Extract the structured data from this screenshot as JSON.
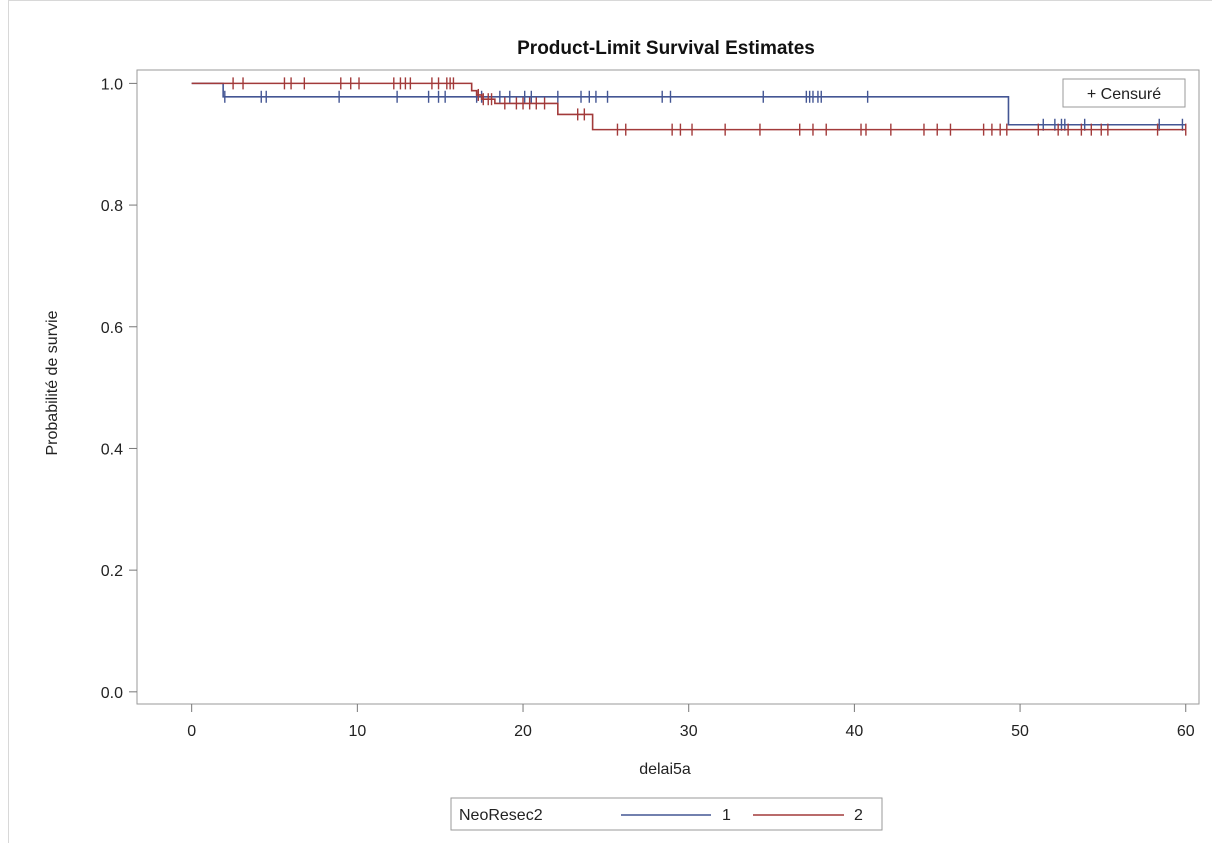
{
  "chart_data": {
    "type": "line",
    "title": "Product-Limit Survival Estimates",
    "xlabel": "delai5a",
    "ylabel": "Probabilité de survie",
    "xlim": [
      -3.3,
      60.8
    ],
    "ylim": [
      -0.02,
      1.022
    ],
    "xticks": [
      0,
      10,
      20,
      30,
      40,
      50,
      60
    ],
    "yticks": [
      0.0,
      0.2,
      0.4,
      0.6,
      0.8,
      1.0
    ],
    "ytick_labels": [
      "0.0",
      "0.2",
      "0.4",
      "0.6",
      "0.8",
      "1.0"
    ],
    "grid": false,
    "inset_legend": {
      "label": "+ Censuré",
      "placement": "top-right"
    },
    "legend": {
      "title": "NeoResec2",
      "placement": "bottom-center"
    },
    "series": [
      {
        "name": "1",
        "color": "#445694",
        "steps": [
          [
            0,
            1.0
          ],
          [
            1.9,
            0.978
          ],
          [
            49.3,
            0.932
          ],
          [
            60.0,
            0.932
          ]
        ],
        "censored": [
          2.0,
          4.2,
          4.5,
          8.9,
          12.4,
          14.3,
          14.9,
          15.3,
          17.2,
          17.5,
          18.6,
          19.2,
          20.1,
          20.5,
          22.1,
          23.5,
          24.0,
          24.4,
          25.1,
          28.4,
          28.9,
          34.5,
          37.1,
          37.3,
          37.5,
          37.8,
          38.0,
          40.8,
          51.4,
          52.1,
          52.5,
          52.7,
          53.9,
          58.4,
          59.8
        ]
      },
      {
        "name": "2",
        "color": "#a23a3a",
        "steps": [
          [
            0,
            1.0
          ],
          [
            16.9,
            0.988
          ],
          [
            17.2,
            0.981
          ],
          [
            17.5,
            0.974
          ],
          [
            18.3,
            0.967
          ],
          [
            19.2,
            0.967
          ],
          [
            22.1,
            0.949
          ],
          [
            24.2,
            0.924
          ],
          [
            60.0,
            0.924
          ]
        ],
        "censored": [
          2.5,
          3.1,
          5.6,
          6.0,
          6.8,
          9.0,
          9.6,
          10.1,
          12.2,
          12.6,
          12.9,
          13.2,
          14.5,
          14.9,
          15.4,
          15.6,
          15.8,
          17.3,
          17.6,
          17.9,
          18.1,
          18.9,
          19.6,
          20.0,
          20.4,
          20.8,
          21.3,
          23.3,
          23.7,
          25.7,
          26.2,
          29.0,
          29.5,
          30.2,
          32.2,
          34.3,
          36.7,
          37.5,
          38.3,
          40.4,
          40.7,
          42.2,
          44.2,
          45.0,
          45.8,
          47.8,
          48.3,
          48.8,
          49.2,
          51.1,
          52.3,
          52.9,
          53.7,
          54.3,
          54.9,
          55.3,
          58.3,
          60.0
        ]
      }
    ]
  }
}
